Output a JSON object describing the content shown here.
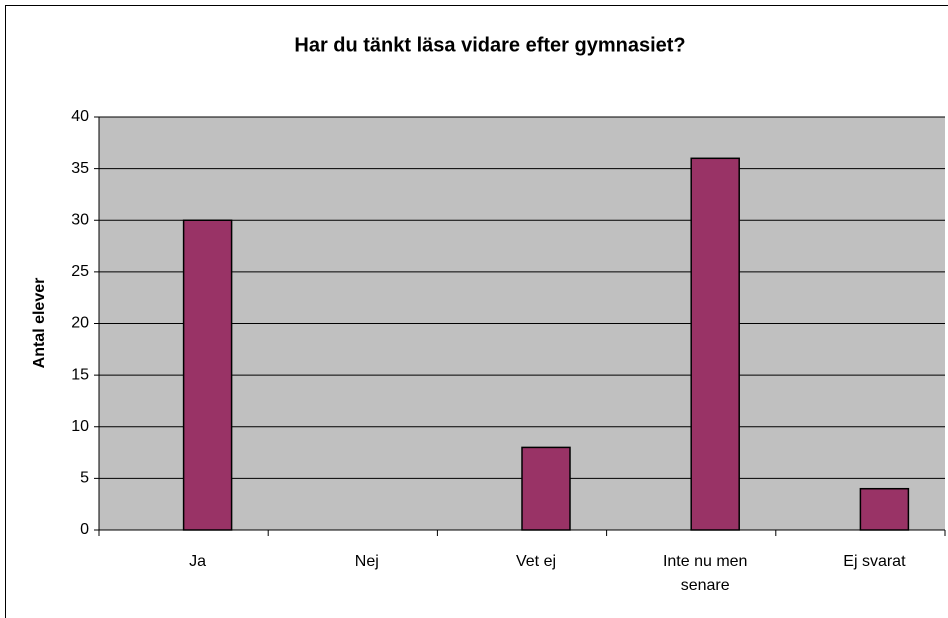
{
  "chart_data": {
    "type": "bar",
    "title": "Har du tänkt läsa vidare efter gymnasiet?",
    "y_label": "Antal elever",
    "categories": [
      "Ja",
      "Nej",
      "Vet ej",
      "Inte nu men senare",
      "Ej svarat"
    ],
    "values": [
      30,
      0,
      8,
      36,
      4
    ],
    "color": "#993366",
    "ylim": [
      0,
      40
    ],
    "yticks": [
      0,
      5,
      10,
      15,
      20,
      25,
      30,
      35,
      40
    ],
    "grid": true
  }
}
